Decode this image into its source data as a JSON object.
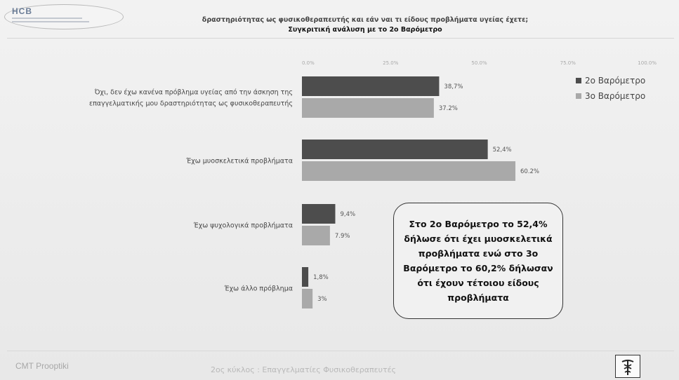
{
  "header": {
    "logo_text": "HCB",
    "title_line1": "δραστηριότητας ως φυσικοθεραπευτής και εάν ναι τι είδους προβλήματα υγείας έχετε;",
    "title_line2": "Συγκριτική ανάλυση με το 2ο Βαρόμετρο"
  },
  "chart_data": {
    "type": "bar",
    "orientation": "horizontal",
    "categories": [
      [
        "Όχι, δεν έχω κανένα πρόβλημα υγείας από την άσκηση της",
        "επαγγελματικής μου δραστηριότητας ως φυσικοθεραπευτής"
      ],
      [
        "Έχω μυοσκελετικά προβλήματα"
      ],
      [
        "Έχω ψυχολογικά προβλήματα"
      ],
      [
        "Έχω άλλο πρόβλημα"
      ]
    ],
    "series": [
      {
        "name": "2ο Βαρόμετρο",
        "values": [
          38.7,
          52.4,
          9.4,
          1.8
        ],
        "labels": [
          "38,7%",
          "52,4%",
          "9,4%",
          "1,8%"
        ],
        "color": "#4d4d4d"
      },
      {
        "name": "3ο Βαρόμετρο",
        "values": [
          37.2,
          60.2,
          7.9,
          3
        ],
        "labels": [
          "37.2%",
          "60.2%",
          "7.9%",
          "3%"
        ],
        "color": "#a9a9a9"
      }
    ],
    "xlim": [
      0,
      100
    ],
    "x_ticks": [
      "0.0%",
      "25.0%",
      "50.0%",
      "75.0%",
      "100.0%"
    ],
    "axis_position": "top",
    "legend_position": "top-right",
    "grid": false
  },
  "callout": {
    "text": "Στο 2ο Βαρόμετρο το 52,4% δήλωσε ότι έχει μυοσκελετικά προβλήματα  ενώ στο 3ο Βαρόμετρο το 60,2% δήλωσαν ότι έχουν τέτοιου είδους προβλήματα"
  },
  "footer": {
    "left": "CMT Prooptiki",
    "center": "2ος κύκλος : Επαγγελματίες Φυσικοθεραπευτές",
    "logo_icon": "caduceus-icon"
  }
}
